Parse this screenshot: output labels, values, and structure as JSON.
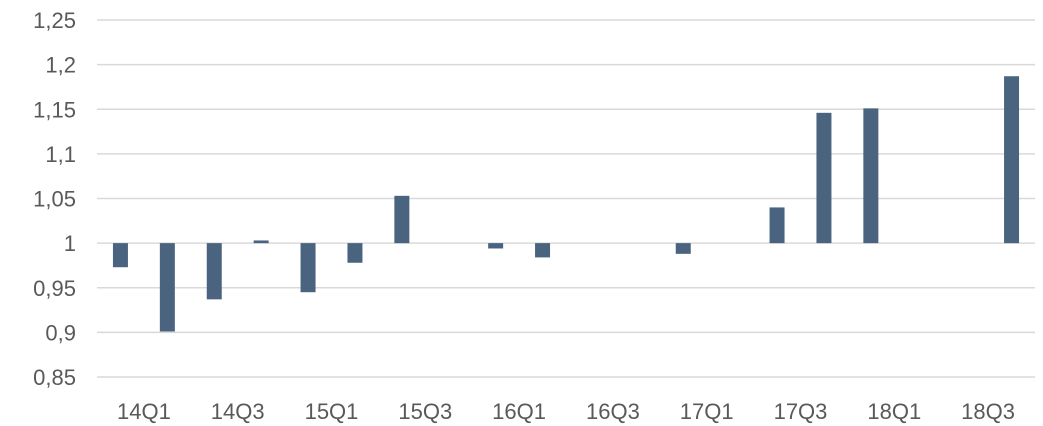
{
  "chart_data": {
    "type": "bar",
    "title": "",
    "xlabel": "",
    "ylabel": "",
    "baseline": 1,
    "ylim": [
      0.85,
      1.25
    ],
    "y_ticks": [
      0.85,
      0.9,
      0.95,
      1,
      1.05,
      1.1,
      1.15,
      1.2,
      1.25
    ],
    "y_tick_labels": [
      "0,85",
      "0,9",
      "0,95",
      "1",
      "1,05",
      "1,1",
      "1,15",
      "1,2",
      "1,25"
    ],
    "categories": [
      "14Q1",
      "14Q2",
      "14Q3",
      "14Q4",
      "15Q1",
      "15Q2",
      "15Q3",
      "15Q4",
      "16Q1",
      "16Q2",
      "16Q3",
      "16Q4",
      "17Q1",
      "17Q2",
      "17Q3",
      "17Q4",
      "18Q1",
      "18Q2",
      "18Q3",
      "18Q4"
    ],
    "x_tick_labels": [
      "14Q1",
      "14Q3",
      "15Q1",
      "15Q3",
      "16Q1",
      "16Q3",
      "17Q1",
      "17Q3",
      "18Q1",
      "18Q3"
    ],
    "values": [
      0.973,
      0.901,
      0.937,
      1.003,
      0.945,
      0.978,
      1.053,
      null,
      0.994,
      0.984,
      null,
      null,
      0.988,
      null,
      1.04,
      1.146,
      1.151,
      null,
      null,
      1.187
    ],
    "grid": true,
    "legend": "none",
    "bar_color": "#4a6480"
  }
}
